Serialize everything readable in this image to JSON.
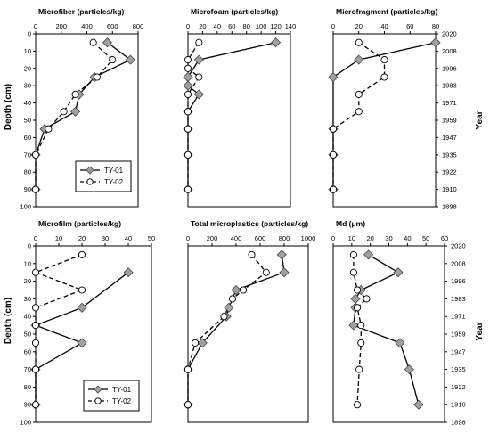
{
  "figure": {
    "depth_label": "Depth (cm)",
    "year_label": "Year"
  },
  "chart_data": [
    {
      "type": "line",
      "title": "Microfiber (particles/kg)",
      "xlim": [
        0,
        800
      ],
      "xticks": [
        "0",
        "200",
        "400",
        "600",
        "800"
      ],
      "ylabel": "Depth (cm)",
      "ylim": [
        0,
        100
      ],
      "yticks": [
        "0",
        "10",
        "20",
        "30",
        "40",
        "50",
        "60",
        "70",
        "80",
        "90",
        "100"
      ],
      "series": [
        {
          "name": "TY-01",
          "x": [
            560,
            740,
            460,
            340,
            310,
            70,
            0,
            0
          ],
          "y": [
            5,
            15,
            25,
            35,
            45,
            55,
            70,
            90
          ]
        },
        {
          "name": "TY-02",
          "x": [
            450,
            600,
            480,
            310,
            220,
            100,
            0,
            0
          ],
          "y": [
            5,
            15,
            25,
            35,
            45,
            55,
            70,
            90
          ]
        }
      ]
    },
    {
      "type": "line",
      "title": "Microfoam (particles/kg)",
      "xlim": [
        0,
        140
      ],
      "xticks": [
        "0",
        "20",
        "40",
        "60",
        "80",
        "100",
        "120",
        "140"
      ],
      "ylim": [
        0,
        100
      ],
      "series": [
        {
          "name": "TY-01",
          "x": [
            120,
            15,
            0,
            0,
            15,
            0,
            0,
            0,
            0
          ],
          "y": [
            5,
            15,
            25,
            30,
            35,
            45,
            55,
            70,
            90
          ]
        },
        {
          "name": "TY-02",
          "x": [
            15,
            0,
            0,
            15,
            0,
            0,
            0,
            0,
            0
          ],
          "y": [
            5,
            15,
            20,
            25,
            35,
            45,
            55,
            70,
            90
          ]
        }
      ]
    },
    {
      "type": "line",
      "title": "Microfragment (particles/kg)",
      "xlim": [
        0,
        80
      ],
      "xticks": [
        "0",
        "20",
        "40",
        "60",
        "80"
      ],
      "year_ticks": [
        "2020",
        "2008",
        "1996",
        "1983",
        "1971",
        "1959",
        "1947",
        "1935",
        "1922",
        "1910",
        "1898"
      ],
      "ylim": [
        0,
        100
      ],
      "series": [
        {
          "name": "TY-01",
          "x": [
            80,
            20,
            0,
            0,
            0,
            0,
            0
          ],
          "y": [
            5,
            15,
            25,
            55,
            70,
            90,
            90
          ]
        },
        {
          "name": "TY-02",
          "x": [
            20,
            40,
            40,
            20,
            20,
            0,
            0,
            0
          ],
          "y": [
            5,
            15,
            25,
            35,
            45,
            55,
            70,
            90
          ]
        }
      ]
    },
    {
      "type": "line",
      "title": "Microfilm (particles/kg)",
      "xlim": [
        0,
        50
      ],
      "xticks": [
        "0",
        "10",
        "20",
        "30",
        "40",
        "50"
      ],
      "ylabel": "Depth (cm)",
      "ylim": [
        0,
        100
      ],
      "yticks": [
        "0",
        "10",
        "20",
        "30",
        "40",
        "50",
        "60",
        "70",
        "80",
        "90",
        "100"
      ],
      "series": [
        {
          "name": "TY-01",
          "x": [
            40,
            20,
            0,
            20,
            0,
            0,
            0
          ],
          "y": [
            15,
            35,
            45,
            55,
            70,
            90,
            90
          ]
        },
        {
          "name": "TY-02",
          "x": [
            20,
            0,
            20,
            0,
            0,
            0,
            0,
            0
          ],
          "y": [
            5,
            15,
            25,
            35,
            45,
            55,
            70,
            90
          ]
        }
      ]
    },
    {
      "type": "line",
      "title": "Total microplastics (particles/kg)",
      "xlim": [
        0,
        1000
      ],
      "xticks": [
        "0",
        "200",
        "400",
        "600",
        "800",
        "1000"
      ],
      "ylim": [
        0,
        100
      ],
      "series": [
        {
          "name": "TY-01",
          "x": [
            780,
            800,
            400,
            340,
            320,
            120,
            0,
            0
          ],
          "y": [
            5,
            15,
            25,
            35,
            40,
            55,
            70,
            90
          ]
        },
        {
          "name": "TY-02",
          "x": [
            530,
            650,
            460,
            370,
            300,
            60,
            0,
            0
          ],
          "y": [
            5,
            15,
            25,
            30,
            40,
            55,
            70,
            90
          ]
        }
      ]
    },
    {
      "type": "line",
      "title": "Md (μm)",
      "xlim": [
        0,
        60
      ],
      "xticks": [
        "0",
        "10",
        "20",
        "30",
        "40",
        "50",
        "60"
      ],
      "year_ticks": [
        "2020",
        "2008",
        "1996",
        "1983",
        "1971",
        "1959",
        "1947",
        "1935",
        "1922",
        "1910",
        "1898"
      ],
      "ylim": [
        0,
        100
      ],
      "series": [
        {
          "name": "TY-01",
          "x": [
            19,
            35,
            15,
            12,
            12,
            11,
            36,
            41,
            46
          ],
          "y": [
            5,
            15,
            25,
            30,
            35,
            45,
            55,
            70,
            90
          ]
        },
        {
          "name": "TY-02",
          "x": [
            11,
            11,
            13,
            18,
            13,
            15,
            15,
            14,
            13
          ],
          "y": [
            5,
            15,
            25,
            30,
            35,
            45,
            55,
            70,
            90
          ]
        }
      ]
    }
  ]
}
